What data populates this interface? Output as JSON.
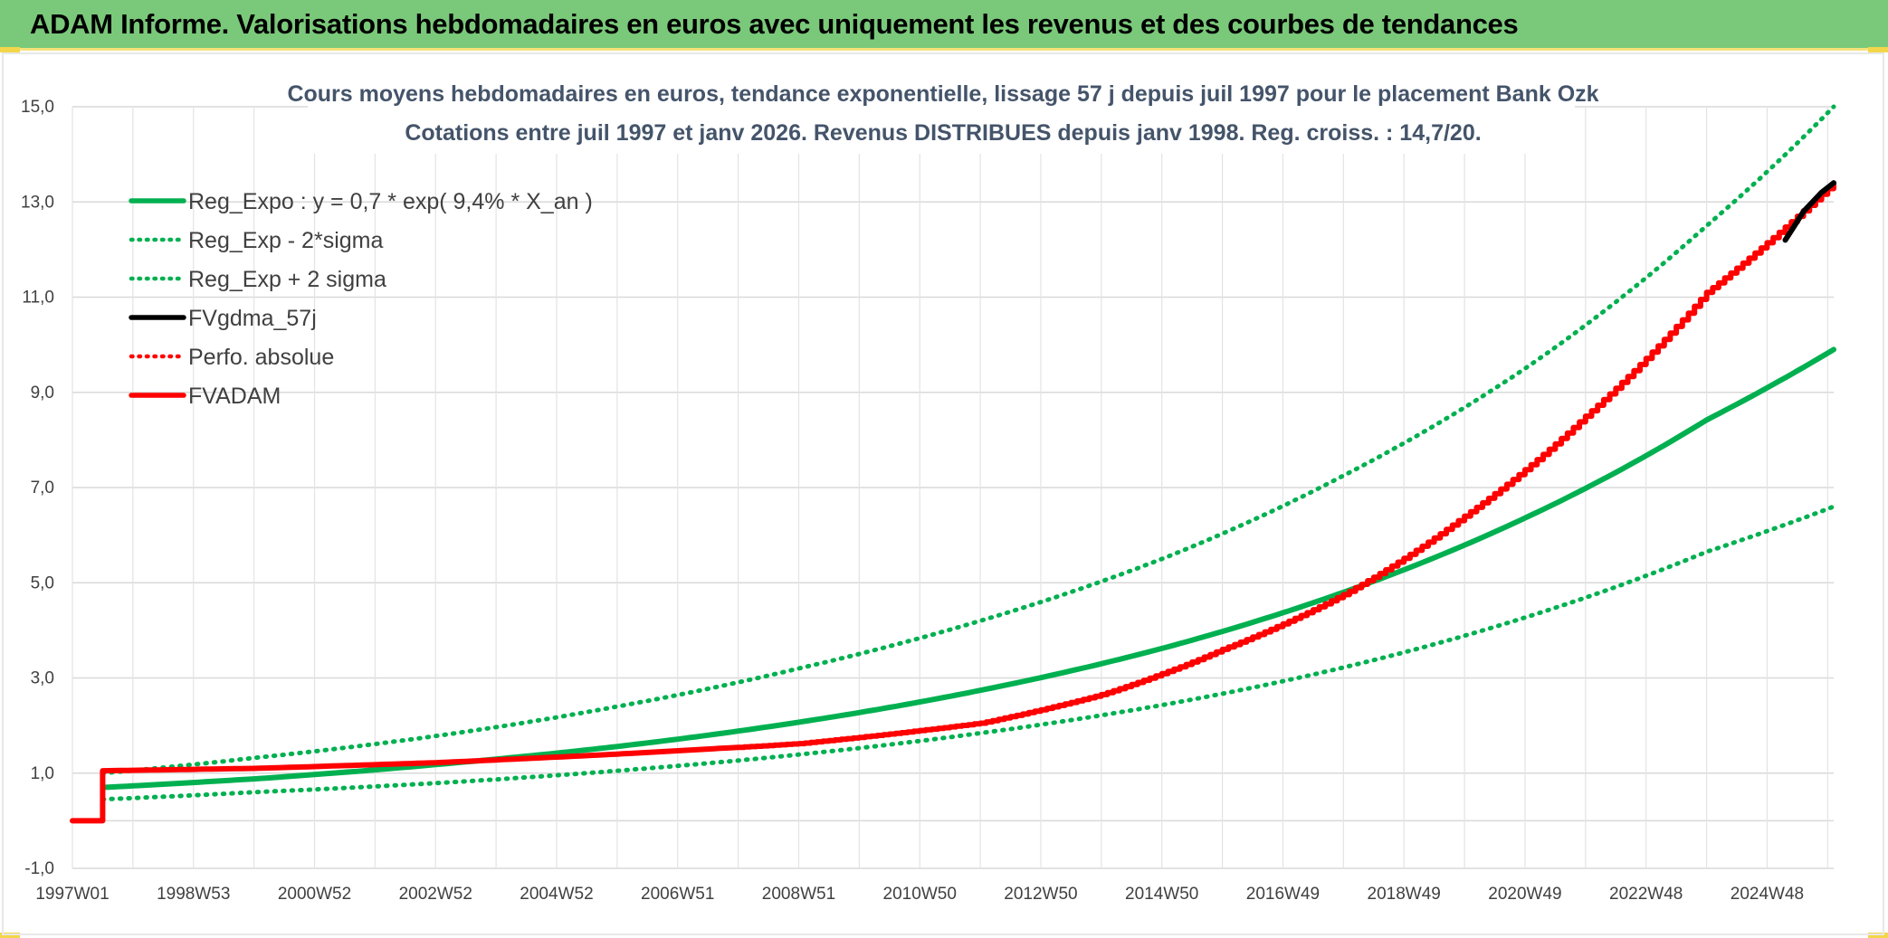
{
  "banner": {
    "title": "ADAM Informe. Valorisations hebdomadaires en euros avec uniquement les revenus et des courbes de tendances"
  },
  "colors": {
    "green": "#00b050",
    "red": "#ff0000",
    "black": "#000000",
    "banner": "#7ac97a"
  },
  "chart_data": {
    "type": "line",
    "title_line1": "Cours moyens hebdomadaires en euros, tendance exponentielle, lissage 57 j depuis juil 1997 pour le placement Bank Ozk",
    "title_line2": "Cotations entre juil 1997 et janv 2026. Revenus DISTRIBUES depuis janv 1998. Reg. croiss. : 14,7/20.",
    "ylim": [
      -1,
      15
    ],
    "y_ticks": [
      "-1,0",
      "1,0",
      "3,0",
      "5,0",
      "7,0",
      "9,0",
      "11,0",
      "13,0",
      "15,0"
    ],
    "x_range": [
      1997.0,
      2026.1
    ],
    "x_ticks": [
      {
        "label": "1997W01",
        "year": 1997.0
      },
      {
        "label": "1998W53",
        "year": 1999.0
      },
      {
        "label": "2000W52",
        "year": 2001.0
      },
      {
        "label": "2002W52",
        "year": 2003.0
      },
      {
        "label": "2004W52",
        "year": 2005.0
      },
      {
        "label": "2006W51",
        "year": 2007.0
      },
      {
        "label": "2008W51",
        "year": 2009.0
      },
      {
        "label": "2010W50",
        "year": 2011.0
      },
      {
        "label": "2012W50",
        "year": 2013.0
      },
      {
        "label": "2014W50",
        "year": 2015.0
      },
      {
        "label": "2016W49",
        "year": 2017.0
      },
      {
        "label": "2018W49",
        "year": 2019.0
      },
      {
        "label": "2020W49",
        "year": 2021.0
      },
      {
        "label": "2022W48",
        "year": 2023.0
      },
      {
        "label": "2024W48",
        "year": 2025.0
      }
    ],
    "grid": true,
    "legend_position": "top-left",
    "series": [
      {
        "name": "Reg_Expo : y = 0,7 * exp( 9,4% *  X_an )",
        "color": "#00b050",
        "style": "solid",
        "x": [
          1997.5,
          2000,
          2003,
          2006,
          2009,
          2012,
          2015,
          2018,
          2021,
          2024,
          2026.1
        ],
        "y": [
          0.7,
          0.88,
          1.18,
          1.56,
          2.07,
          2.74,
          3.62,
          4.8,
          6.36,
          8.42,
          9.9
        ]
      },
      {
        "name": "Reg_Exp - 2*sigma",
        "color": "#00b050",
        "style": "dotted",
        "x": [
          1997.5,
          2000,
          2003,
          2006,
          2009,
          2012,
          2015,
          2018,
          2021,
          2024,
          2026.1
        ],
        "y": [
          0.45,
          0.6,
          0.79,
          1.05,
          1.39,
          1.84,
          2.43,
          3.22,
          4.27,
          5.65,
          6.6
        ]
      },
      {
        "name": "Reg_Exp + 2 sigma",
        "color": "#00b050",
        "style": "dotted",
        "x": [
          1997.5,
          2000,
          2003,
          2006,
          2009,
          2012,
          2015,
          2018,
          2021,
          2024,
          2026.1
        ],
        "y": [
          1.0,
          1.32,
          1.78,
          2.4,
          3.2,
          4.2,
          5.5,
          7.25,
          9.5,
          12.5,
          15.0
        ]
      },
      {
        "name": "FVgdma_57j",
        "color": "#000000",
        "style": "solid",
        "x": [
          2025.3,
          2025.6,
          2025.9,
          2026.1
        ],
        "y": [
          12.2,
          12.8,
          13.2,
          13.4
        ]
      },
      {
        "name": "Perfo. absolue",
        "color": "#ff0000",
        "style": "dotted",
        "x": [
          1997.0,
          1997.5,
          1997.5,
          2000,
          2003,
          2006,
          2009,
          2012,
          2014,
          2016,
          2018,
          2020,
          2022,
          2024,
          2026.1
        ],
        "y": [
          0.0,
          0.0,
          1.05,
          1.1,
          1.22,
          1.4,
          1.62,
          2.05,
          2.65,
          3.6,
          4.75,
          6.4,
          8.5,
          11.1,
          13.4
        ]
      },
      {
        "name": "FVADAM",
        "color": "#ff0000",
        "style": "solid",
        "x": [
          1997.0,
          1997.5,
          1997.5,
          2000,
          2003,
          2006,
          2009,
          2012,
          2014,
          2016,
          2018,
          2020,
          2022,
          2024,
          2026.1
        ],
        "y": [
          0.0,
          0.0,
          1.05,
          1.1,
          1.22,
          1.4,
          1.62,
          2.05,
          2.65,
          3.6,
          4.75,
          6.4,
          8.5,
          11.1,
          13.4
        ]
      }
    ]
  }
}
